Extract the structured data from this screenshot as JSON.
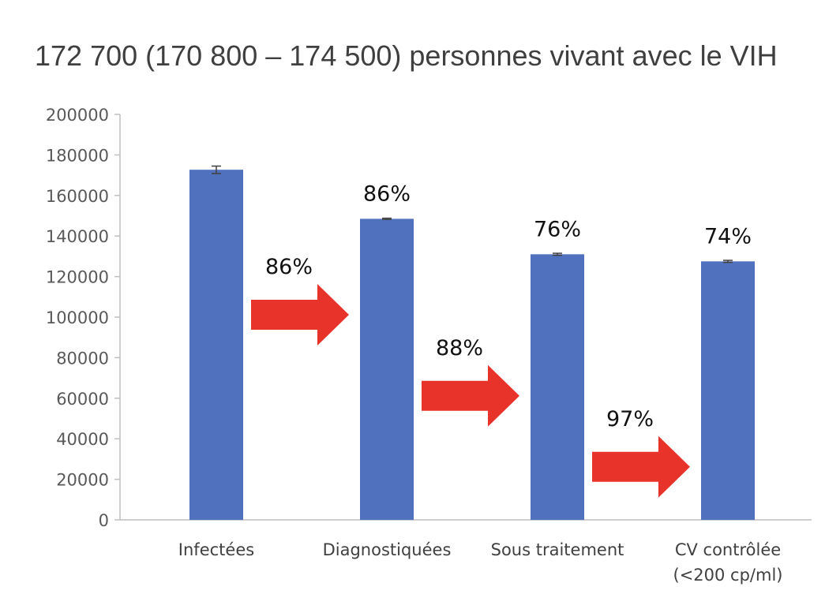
{
  "chart_data": {
    "type": "bar",
    "title": "172 700 (170 800 – 174 500) personnes vivant avec le VIH",
    "categories": [
      [
        "Infectées"
      ],
      [
        "Diagnostiquées"
      ],
      [
        "Sous traitement"
      ],
      [
        "CV contrôlée",
        "(<200 cp/ml)"
      ]
    ],
    "values": [
      172700,
      148500,
      131000,
      127500
    ],
    "error_bars": [
      [
        170800,
        174500
      ],
      [
        148200,
        148800
      ],
      [
        130500,
        131500
      ],
      [
        127000,
        128000
      ]
    ],
    "bar_labels": [
      "",
      "86%",
      "76%",
      "74%"
    ],
    "step_arrows": [
      {
        "label": "86%",
        "value": 100000
      },
      {
        "label": "88%",
        "value": 60000
      },
      {
        "label": "97%",
        "value": 25000
      }
    ],
    "yticks": [
      0,
      20000,
      40000,
      60000,
      80000,
      100000,
      120000,
      140000,
      160000,
      180000,
      200000
    ],
    "ylim": [
      0,
      200000
    ],
    "grid": false,
    "colors": {
      "bar": "#4F71BE",
      "arrow": "#E8332B",
      "axis": "#BFBFBF",
      "error_bar": "#404040"
    }
  }
}
